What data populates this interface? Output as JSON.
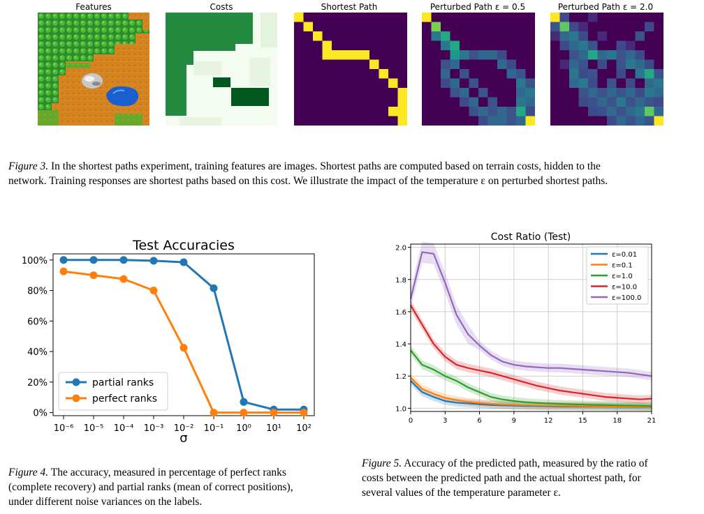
{
  "figure3": {
    "panels": [
      {
        "title": "Features"
      },
      {
        "title": "Costs"
      },
      {
        "title": "Shortest Path"
      },
      {
        "title": "Perturbed Path ε = 0.5"
      },
      {
        "title": "Perturbed Path ε = 2.0"
      }
    ],
    "caption_lead": "Figure 3.",
    "caption_line1": "In the shortest paths experiment, training features are images. Shortest paths are computed based on terrain costs, hidden to the",
    "caption_line2": "network. Training responses are shortest paths based on this cost. We illustrate the impact of the temperature ε on perturbed shortest paths."
  },
  "figure4": {
    "caption_lead": "Figure 4.",
    "caption_line1": "The accuracy, measured in percentage of perfect ranks",
    "caption_line2": "(complete recovery) and partial ranks (mean of correct positions),",
    "caption_line3": "under different noise variances on the labels."
  },
  "figure5": {
    "caption_lead": "Figure 5.",
    "caption_line1": "Accuracy of the predicted path, measured by the ratio of",
    "caption_line2": "costs between the predicted path and the actual shortest path, for",
    "caption_line3": "several values of the temperature parameter ε."
  },
  "chart_data": [
    {
      "type": "line",
      "title": "Test Accuracies",
      "xlabel": "σ",
      "ylabel": "",
      "x_scale": "log",
      "x": [
        1e-06,
        1e-05,
        0.0001,
        0.001,
        0.01,
        0.1,
        1,
        10,
        100
      ],
      "x_tick_labels": [
        "10⁻⁶",
        "10⁻⁵",
        "10⁻⁴",
        "10⁻³",
        "10⁻²",
        "10⁻¹",
        "10⁰",
        "10¹",
        "10²"
      ],
      "y_ticks": [
        0,
        20,
        40,
        60,
        80,
        100
      ],
      "y_tick_labels": [
        "0%",
        "20%",
        "40%",
        "60%",
        "80%",
        "100%"
      ],
      "ylim": [
        -2,
        104
      ],
      "legend_position": "lower-left",
      "series": [
        {
          "name": "partial ranks",
          "color": "#1f77b4",
          "values": [
            100,
            100,
            100,
            99.5,
            98.5,
            81.5,
            7,
            2,
            2
          ]
        },
        {
          "name": "perfect ranks",
          "color": "#ff7f0e",
          "values": [
            92.5,
            90,
            87.5,
            80,
            42.5,
            0,
            0,
            0,
            0
          ]
        }
      ]
    },
    {
      "type": "line",
      "title": "Cost Ratio (Test)",
      "xlabel": "",
      "ylabel": "",
      "x": [
        0,
        1,
        2,
        3,
        4,
        5,
        6,
        7,
        8,
        9,
        10,
        11,
        12,
        13,
        14,
        15,
        16,
        17,
        18,
        19,
        20,
        21
      ],
      "x_ticks": [
        0,
        3,
        6,
        9,
        12,
        15,
        18,
        21
      ],
      "y_ticks": [
        1.0,
        1.2,
        1.4,
        1.6,
        1.8,
        2.0
      ],
      "y_tick_labels": [
        "1.0",
        "1.2",
        "1.4",
        "1.6",
        "1.8",
        "2.0"
      ],
      "xlim": [
        0,
        21
      ],
      "ylim": [
        0.98,
        2.02
      ],
      "grid": true,
      "legend_position": "top-right",
      "series": [
        {
          "name": "ε=0.01",
          "color": "#1f77b4",
          "values": [
            1.17,
            1.1,
            1.07,
            1.045,
            1.035,
            1.03,
            1.025,
            1.02,
            1.018,
            1.016,
            1.014,
            1.013,
            1.012,
            1.011,
            1.011,
            1.01,
            1.01,
            1.01,
            1.009,
            1.009,
            1.008,
            1.008
          ]
        },
        {
          "name": "ε=0.1",
          "color": "#ff7f0e",
          "values": [
            1.19,
            1.12,
            1.09,
            1.065,
            1.05,
            1.04,
            1.033,
            1.028,
            1.024,
            1.021,
            1.019,
            1.017,
            1.016,
            1.015,
            1.014,
            1.013,
            1.012,
            1.012,
            1.011,
            1.011,
            1.01,
            1.01
          ]
        },
        {
          "name": "ε=1.0",
          "color": "#2ca02c",
          "values": [
            1.36,
            1.27,
            1.24,
            1.2,
            1.17,
            1.13,
            1.1,
            1.07,
            1.055,
            1.045,
            1.038,
            1.033,
            1.03,
            1.027,
            1.025,
            1.023,
            1.021,
            1.02,
            1.018,
            1.017,
            1.016,
            1.015
          ]
        },
        {
          "name": "ε=10.0",
          "color": "#d62728",
          "values": [
            1.64,
            1.52,
            1.4,
            1.32,
            1.27,
            1.25,
            1.235,
            1.22,
            1.2,
            1.18,
            1.16,
            1.14,
            1.125,
            1.11,
            1.1,
            1.09,
            1.08,
            1.07,
            1.065,
            1.06,
            1.055,
            1.06
          ]
        },
        {
          "name": "ε=100.0",
          "color": "#9467bd",
          "values": [
            1.68,
            1.97,
            1.96,
            1.78,
            1.58,
            1.46,
            1.39,
            1.33,
            1.29,
            1.27,
            1.26,
            1.255,
            1.25,
            1.25,
            1.245,
            1.24,
            1.235,
            1.23,
            1.225,
            1.22,
            1.21,
            1.2
          ]
        }
      ]
    }
  ]
}
